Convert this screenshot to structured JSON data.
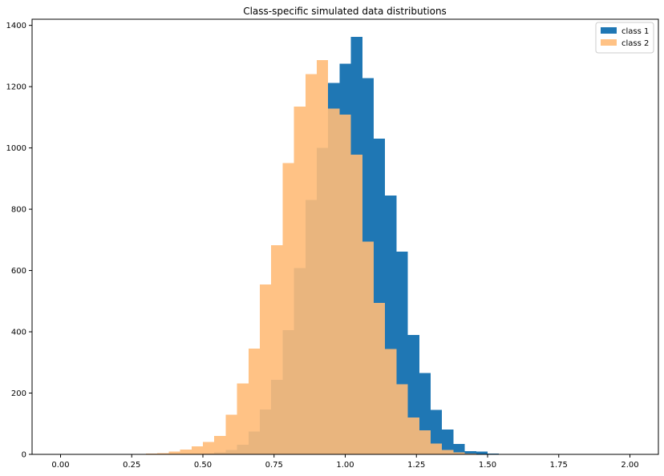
{
  "chart_data": {
    "type": "bar",
    "title": "Class-specific simulated data distributions",
    "xlabel": "",
    "ylabel": "",
    "xlim": [
      -0.1,
      2.1
    ],
    "ylim": [
      0,
      1420
    ],
    "x_ticks": [
      0.0,
      0.25,
      0.5,
      0.75,
      1.0,
      1.25,
      1.5,
      1.75,
      2.0
    ],
    "x_tick_labels": [
      "0.00",
      "0.25",
      "0.50",
      "0.75",
      "1.00",
      "1.25",
      "1.50",
      "1.75",
      "2.00"
    ],
    "y_ticks": [
      0,
      200,
      400,
      600,
      800,
      1000,
      1200,
      1400
    ],
    "y_tick_labels": [
      "0",
      "200",
      "400",
      "600",
      "800",
      "1000",
      "1200",
      "1400"
    ],
    "grid": false,
    "legend_position": "top-right",
    "series": [
      {
        "name": "class 1",
        "color": "#1f77b4",
        "opacity": 1.0,
        "bin_edges": [
          0.46,
          0.5,
          0.54,
          0.58,
          0.62,
          0.66,
          0.7,
          0.74,
          0.78,
          0.82,
          0.86,
          0.9,
          0.94,
          0.98,
          1.02,
          1.06,
          1.1,
          1.14,
          1.18,
          1.22,
          1.26,
          1.3,
          1.34,
          1.38,
          1.42,
          1.46,
          1.5,
          1.54,
          1.58
        ],
        "counts": [
          1,
          3,
          7,
          15,
          32,
          75,
          147,
          243,
          406,
          608,
          830,
          1000,
          1212,
          1275,
          1362,
          1228,
          1031,
          845,
          661,
          390,
          266,
          145,
          81,
          34,
          11,
          9,
          2,
          1
        ]
      },
      {
        "name": "class 2",
        "color": "#ffbb78",
        "opacity": 0.9,
        "bin_edges": [
          0.26,
          0.3,
          0.34,
          0.38,
          0.42,
          0.46,
          0.5,
          0.54,
          0.58,
          0.62,
          0.66,
          0.7,
          0.74,
          0.78,
          0.82,
          0.86,
          0.9,
          0.94,
          0.98,
          1.02,
          1.06,
          1.1,
          1.14,
          1.18,
          1.22,
          1.26,
          1.3,
          1.34,
          1.38,
          1.42,
          1.46,
          1.5
        ],
        "counts": [
          1,
          2,
          4,
          9,
          16,
          26,
          40,
          60,
          130,
          232,
          345,
          555,
          683,
          950,
          1135,
          1241,
          1287,
          1129,
          1109,
          978,
          694,
          494,
          344,
          229,
          120,
          78,
          35,
          15,
          7,
          2,
          1
        ]
      }
    ]
  }
}
